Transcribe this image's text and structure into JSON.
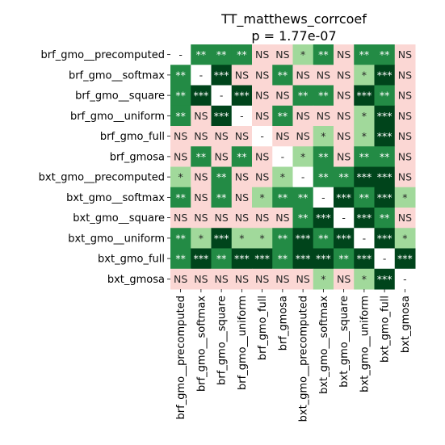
{
  "chart_data": {
    "type": "heatmap",
    "title": "TT_matthews_corrcoef",
    "subtitle": "p = 1.77e-07",
    "labels": [
      "brf_gmo__precomputed",
      "brf_gmo__softmax",
      "brf_gmo__square",
      "brf_gmo__uniform",
      "brf_gmo_full",
      "brf_gmosa",
      "bxt_gmo__precomputed",
      "bxt_gmo__softmax",
      "bxt_gmo__square",
      "bxt_gmo__uniform",
      "bxt_gmo_full",
      "bxt_gmosa"
    ],
    "matrix": [
      [
        "-",
        "**",
        "**",
        "**",
        "NS",
        "NS",
        "*",
        "**",
        "NS",
        "**",
        "**",
        "NS"
      ],
      [
        "**",
        "-",
        "***",
        "NS",
        "NS",
        "**",
        "NS",
        "NS",
        "NS",
        "*",
        "***",
        "NS"
      ],
      [
        "**",
        "***",
        "-",
        "***",
        "NS",
        "NS",
        "**",
        "**",
        "NS",
        "***",
        "**",
        "NS"
      ],
      [
        "**",
        "NS",
        "***",
        "-",
        "NS",
        "**",
        "NS",
        "NS",
        "NS",
        "*",
        "***",
        "NS"
      ],
      [
        "NS",
        "NS",
        "NS",
        "NS",
        "-",
        "NS",
        "NS",
        "*",
        "NS",
        "*",
        "***",
        "NS"
      ],
      [
        "NS",
        "**",
        "NS",
        "**",
        "NS",
        "-",
        "*",
        "**",
        "NS",
        "**",
        "**",
        "NS"
      ],
      [
        "*",
        "NS",
        "**",
        "NS",
        "NS",
        "*",
        "-",
        "**",
        "**",
        "***",
        "***",
        "NS"
      ],
      [
        "**",
        "NS",
        "**",
        "NS",
        "*",
        "**",
        "**",
        "-",
        "***",
        "**",
        "***",
        "*"
      ],
      [
        "NS",
        "NS",
        "NS",
        "NS",
        "NS",
        "NS",
        "**",
        "***",
        "-",
        "***",
        "**",
        "NS"
      ],
      [
        "**",
        "*",
        "***",
        "*",
        "*",
        "**",
        "***",
        "**",
        "***",
        "-",
        "***",
        "*"
      ],
      [
        "**",
        "***",
        "**",
        "***",
        "***",
        "**",
        "***",
        "***",
        "**",
        "***",
        "-",
        "***"
      ],
      [
        "NS",
        "NS",
        "NS",
        "NS",
        "NS",
        "NS",
        "NS",
        "*",
        "NS",
        "*",
        "***",
        "-"
      ]
    ],
    "colors": {
      "NS": "#fbd7d4",
      "*": "#a1d99b",
      "**": "#238b45",
      "***": "#00441b",
      "-": "#ffffff"
    },
    "text_colors": {
      "NS": "#262626",
      "*": "#262626",
      "**": "#ffffff",
      "***": "#ffffff",
      "-": "#262626"
    }
  }
}
